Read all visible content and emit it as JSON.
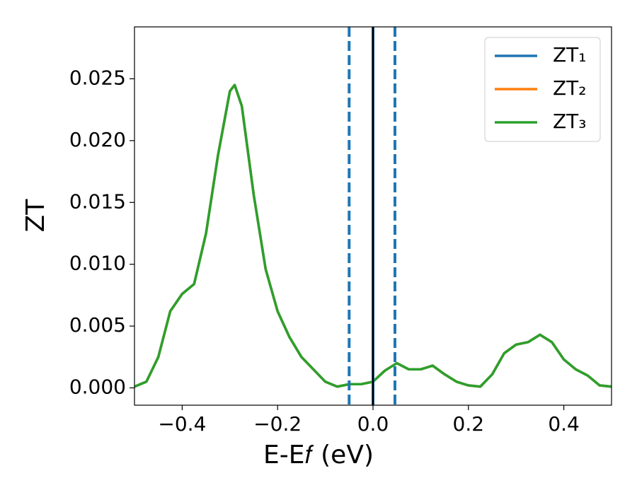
{
  "chart_data": {
    "type": "line",
    "xlabel": "E-E𝑓 (eV)",
    "ylabel": "ZT",
    "x": [
      -0.5,
      -0.475,
      -0.45,
      -0.425,
      -0.4,
      -0.375,
      -0.35,
      -0.325,
      -0.3,
      -0.29,
      -0.275,
      -0.25,
      -0.225,
      -0.2,
      -0.175,
      -0.15,
      -0.125,
      -0.1,
      -0.075,
      -0.05,
      -0.025,
      0,
      0.025,
      0.05,
      0.075,
      0.1,
      0.125,
      0.15,
      0.175,
      0.2,
      0.225,
      0.25,
      0.275,
      0.3,
      0.325,
      0.35,
      0.375,
      0.4,
      0.425,
      0.45,
      0.475,
      0.5
    ],
    "series": [
      {
        "name": "ZT₁",
        "color": "#1f77b4",
        "values": [
          0.0001,
          0.0005,
          0.0025,
          0.0062,
          0.0076,
          0.0084,
          0.0125,
          0.0188,
          0.024,
          0.0245,
          0.0228,
          0.0156,
          0.0096,
          0.0062,
          0.0041,
          0.0025,
          0.0015,
          0.0005,
          0.0001,
          0.0003,
          0.0003,
          0.0005,
          0.0014,
          0.002,
          0.0015,
          0.0015,
          0.0018,
          0.0011,
          0.0005,
          0.0002,
          0.0001,
          0.0011,
          0.0028,
          0.0035,
          0.0037,
          0.0043,
          0.0037,
          0.0023,
          0.0015,
          0.001,
          0.0002,
          0.0001
        ]
      },
      {
        "name": "ZT₂",
        "color": "#ff7f0e",
        "values": [
          0.0001,
          0.0005,
          0.0025,
          0.0062,
          0.0076,
          0.0084,
          0.0125,
          0.0188,
          0.024,
          0.0245,
          0.0228,
          0.0156,
          0.0096,
          0.0062,
          0.0041,
          0.0025,
          0.0015,
          0.0005,
          0.0001,
          0.0003,
          0.0003,
          0.0005,
          0.0014,
          0.002,
          0.0015,
          0.0015,
          0.0018,
          0.0011,
          0.0005,
          0.0002,
          0.0001,
          0.0011,
          0.0028,
          0.0035,
          0.0037,
          0.0043,
          0.0037,
          0.0023,
          0.0015,
          0.001,
          0.0002,
          0.0001
        ]
      },
      {
        "name": "ZT₃",
        "color": "#2ca02c",
        "values": [
          0.0001,
          0.0005,
          0.0025,
          0.0062,
          0.0076,
          0.0084,
          0.0125,
          0.0188,
          0.024,
          0.0245,
          0.0228,
          0.0156,
          0.0096,
          0.0062,
          0.0041,
          0.0025,
          0.0015,
          0.0005,
          0.0001,
          0.0003,
          0.0003,
          0.0005,
          0.0014,
          0.002,
          0.0015,
          0.0015,
          0.0018,
          0.0011,
          0.0005,
          0.0002,
          0.0001,
          0.0011,
          0.0028,
          0.0035,
          0.0037,
          0.0043,
          0.0037,
          0.0023,
          0.0015,
          0.001,
          0.0002,
          0.0001
        ]
      }
    ],
    "vlines": [
      {
        "x": -0.05,
        "color": "#1f77b4",
        "style": "dashed"
      },
      {
        "x": 0.046,
        "color": "#1f77b4",
        "style": "dashed"
      },
      {
        "x": 0,
        "color": "#1f77b4",
        "style": "solid"
      },
      {
        "x": 0,
        "color": "#000000",
        "style": "solid"
      }
    ],
    "xlim": [
      -0.5,
      0.5
    ],
    "xticks": [
      {
        "value": -0.4,
        "label": "−0.4"
      },
      {
        "value": -0.2,
        "label": "−0.2"
      },
      {
        "value": 0,
        "label": "0.0"
      },
      0.2,
      0.4
    ],
    "ylim": [
      -0.0014,
      0.0292
    ],
    "yticks": [
      {
        "value": 0,
        "label": "0.000"
      },
      {
        "value": 0.005,
        "label": "0.005"
      },
      {
        "value": 0.01,
        "label": "0.010"
      },
      {
        "value": 0.015,
        "label": "0.015"
      },
      {
        "value": 0.02,
        "label": "0.020"
      },
      {
        "value": 0.025,
        "label": "0.025"
      }
    ],
    "legend": "upper right",
    "grid": false
  }
}
